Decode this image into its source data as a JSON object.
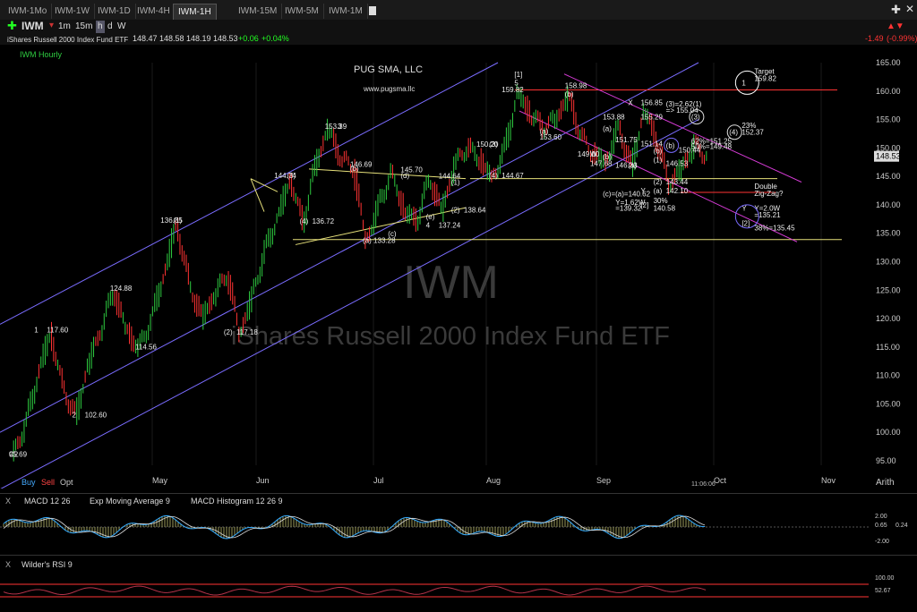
{
  "tabs": [
    "IWM-1Mo",
    "IWM-1W",
    "IWM-1D",
    "IWM-4H",
    "IWM-1H",
    "IWM-15M",
    "IWM-5M",
    "IWM-1M"
  ],
  "active_tab": "IWM-1H",
  "symbol": "IWM",
  "intervals": [
    "1m",
    "15m",
    "h",
    "d",
    "W"
  ],
  "description": "iShares Russell 2000 Index Fund ETF",
  "quote": {
    "prev": "148.47",
    "high": "148.58",
    "low": "148.19",
    "last": "148.53",
    "change": "+0.06",
    "pct": "+0.04%"
  },
  "header_right": {
    "change": "-1.49",
    "pct": "(-0.99%)"
  },
  "panel_title": "IWM Hourly",
  "watermark_symbol": "IWM",
  "watermark_desc": "iShares Russell 2000 Index Fund ETF",
  "brand": "PUG SMA, LLC",
  "brand_url": "www.pugsma.llc",
  "trade_buttons": {
    "buy": "Buy",
    "sell": "Sell",
    "opt": "Opt"
  },
  "time_marker": "11:06:06",
  "scale_mode": "Arith",
  "macd_legend": {
    "macd": "MACD 12 26",
    "ema": "Exp Moving Average 9",
    "hist": "MACD Histogram 12 26 9"
  },
  "macd_axis": [
    "2.00",
    "0.65",
    "0.24",
    "-2.00"
  ],
  "rsi_legend": "Wilder's RSI 9",
  "rsi_axis": [
    "100.00",
    "52.67"
  ],
  "colors": {
    "up": "#2ecc40",
    "down": "#ff3333",
    "channel": "#7a6cff",
    "magenta": "#d63bd6",
    "yellow": "#e6e07a",
    "resistance": "#ff3333"
  },
  "chart_data": {
    "type": "line",
    "x_ticks": [
      "May",
      "Jun",
      "Jul",
      "Aug",
      "Sep",
      "Oct",
      "Nov"
    ],
    "y_ticks": [
      "165.00",
      "160.00",
      "155.00",
      "150.00",
      "145.00",
      "140.00",
      "135.00",
      "130.00",
      "125.00",
      "120.00",
      "115.00",
      "110.00",
      "105.00",
      "100.00",
      "95.00"
    ],
    "ylim": [
      95,
      165
    ],
    "last_price": "148.53",
    "series": [
      {
        "values": [
          95.69,
          101,
          110,
          117.6,
          108,
          102.6,
          112,
          118,
          124.88,
          118,
          114.56,
          120,
          128,
          136.85,
          126,
          120,
          124,
          128,
          117.18,
          124,
          132,
          138,
          144.74,
          136.72,
          147,
          153.39,
          148,
          146.69,
          133.28,
          140,
          145.7,
          139,
          137.24,
          144.64,
          138.64,
          147,
          150.2,
          148,
          144.67,
          150,
          159.82,
          156,
          153.6,
          155,
          158.98,
          152,
          149,
          147.68,
          153.88,
          146.33,
          156.85,
          151.14,
          143.44,
          146.53,
          150.44,
          148.53
        ]
      }
    ],
    "annotations": [
      {
        "text": "C2",
        "x": 0,
        "y": 95.69
      },
      {
        "text": "95.69",
        "x": 0,
        "y": 95.69
      },
      {
        "text": "1",
        "x": 2,
        "y": 117.6
      },
      {
        "text": "117.60",
        "x": 3,
        "y": 117.6
      },
      {
        "text": "2",
        "x": 5,
        "y": 102.6
      },
      {
        "text": "102.60",
        "x": 6,
        "y": 102.6
      },
      {
        "text": "124.88",
        "x": 8,
        "y": 124.88
      },
      {
        "text": "114.56",
        "x": 10,
        "y": 114.56
      },
      {
        "text": "136.85",
        "x": 12,
        "y": 136.85
      },
      {
        "text": "(1)",
        "x": 13,
        "y": 136.85
      },
      {
        "text": "(2)",
        "x": 17,
        "y": 117.18
      },
      {
        "text": "117.18",
        "x": 18,
        "y": 117.18
      },
      {
        "text": "144.74",
        "x": 21,
        "y": 144.74
      },
      {
        "text": "(3)",
        "x": 22,
        "y": 144.74
      },
      {
        "text": "(4)",
        "x": 23,
        "y": 136.72
      },
      {
        "text": "136.72",
        "x": 24,
        "y": 136.72
      },
      {
        "text": "153.39",
        "x": 25,
        "y": 153.39
      },
      {
        "text": "3",
        "x": 26,
        "y": 153.39
      },
      {
        "text": "146.69",
        "x": 27,
        "y": 146.69
      },
      {
        "text": "(b)",
        "x": 27,
        "y": 146.0
      },
      {
        "text": "(a) 133.28",
        "x": 28,
        "y": 133.28
      },
      {
        "text": "(c)",
        "x": 30,
        "y": 134.5
      },
      {
        "text": "145.70",
        "x": 31,
        "y": 145.7
      },
      {
        "text": "(d)",
        "x": 31,
        "y": 144.7
      },
      {
        "text": "(e)",
        "x": 33,
        "y": 137.5
      },
      {
        "text": "4",
        "x": 33,
        "y": 136.0
      },
      {
        "text": "137.24",
        "x": 34,
        "y": 136.0
      },
      {
        "text": "144.64",
        "x": 34,
        "y": 144.64
      },
      {
        "text": "(1)",
        "x": 35,
        "y": 143.5
      },
      {
        "text": "(2)",
        "x": 35,
        "y": 138.64
      },
      {
        "text": "138.64",
        "x": 36,
        "y": 138.64
      },
      {
        "text": "150.20",
        "x": 37,
        "y": 150.2
      },
      {
        "text": "(3)",
        "x": 38,
        "y": 150.2
      },
      {
        "text": "(4)",
        "x": 38,
        "y": 144.67
      },
      {
        "text": "144.67",
        "x": 39,
        "y": 144.67
      },
      {
        "text": "159.82",
        "x": 39,
        "y": 159.82
      },
      {
        "text": "[1]",
        "x": 40,
        "y": 162.5
      },
      {
        "text": "5",
        "x": 40,
        "y": 161.0
      },
      {
        "text": "(a)",
        "x": 42,
        "y": 152.5
      },
      {
        "text": "153.60",
        "x": 42,
        "y": 151.5
      },
      {
        "text": "158.98",
        "x": 44,
        "y": 160.5
      },
      {
        "text": "(b)",
        "x": 44,
        "y": 159.0
      },
      {
        "text": "149.00",
        "x": 45,
        "y": 148.5
      },
      {
        "text": "W",
        "x": 46,
        "y": 148.5
      },
      {
        "text": "147.68",
        "x": 46,
        "y": 146.8
      },
      {
        "text": "(b)",
        "x": 47,
        "y": 148.0
      },
      {
        "text": "(a)",
        "x": 47,
        "y": 153.0
      },
      {
        "text": "153.88",
        "x": 47,
        "y": 155.0
      },
      {
        "text": "151.75",
        "x": 48,
        "y": 151.0
      },
      {
        "text": "146.33",
        "x": 48,
        "y": 146.5
      },
      {
        "text": "(a)",
        "x": 49,
        "y": 146.5
      },
      {
        "text": "X",
        "x": 49,
        "y": 157.5
      },
      {
        "text": "156.85",
        "x": 50,
        "y": 157.5
      },
      {
        "text": "155.29",
        "x": 50,
        "y": 155.0
      },
      {
        "text": "151.14",
        "x": 50,
        "y": 150.3
      },
      {
        "text": "(b)",
        "x": 51,
        "y": 149.0
      },
      {
        "text": "(1)",
        "x": 51,
        "y": 147.5
      },
      {
        "text": "146.53",
        "x": 52,
        "y": 146.8
      },
      {
        "text": "150.44",
        "x": 53,
        "y": 149.2
      },
      {
        "text": "(2)",
        "x": 51,
        "y": 143.6
      },
      {
        "text": "143.44",
        "x": 52,
        "y": 143.6
      },
      {
        "text": "(c)=(a)=140.62",
        "x": 47,
        "y": 141.5
      },
      {
        "text": "Y",
        "x": 50,
        "y": 142.0
      },
      {
        "text": "(a)",
        "x": 51,
        "y": 142.0
      },
      {
        "text": "142.10",
        "x": 52,
        "y": 142.0
      },
      {
        "text": "Y=1.62W",
        "x": 48,
        "y": 140.0
      },
      {
        "text": "=139.32",
        "x": 48,
        "y": 139.0
      },
      {
        "text": "[2]",
        "x": 50,
        "y": 139.5
      },
      {
        "text": "30%",
        "x": 51,
        "y": 140.3
      },
      {
        "text": "140.58",
        "x": 51,
        "y": 139.0
      },
      {
        "text": "(3)=2.62(1)",
        "x": 52,
        "y": 157.3
      },
      {
        "text": "=> 155.04",
        "x": 52,
        "y": 156.2
      },
      {
        "text": "(3)",
        "x": 54,
        "y": 155.0
      },
      {
        "text": "62%=151.25",
        "x": 54,
        "y": 150.8
      },
      {
        "text": "50%=149.48",
        "x": 54,
        "y": 149.8
      },
      {
        "text": "(b)",
        "x": 52,
        "y": 150.0
      },
      {
        "text": "(4)",
        "x": 57,
        "y": 152.3
      },
      {
        "text": "23%",
        "x": 58,
        "y": 153.5
      },
      {
        "text": "152.37",
        "x": 58,
        "y": 152.3
      },
      {
        "text": "1",
        "x": 58,
        "y": 161.0
      },
      {
        "text": "Target",
        "x": 59,
        "y": 163.0
      },
      {
        "text": "159.82",
        "x": 59,
        "y": 161.8
      },
      {
        "text": "Double",
        "x": 59,
        "y": 142.8
      },
      {
        "text": "Zig-Zag?",
        "x": 59,
        "y": 141.6
      },
      {
        "text": "Y",
        "x": 58,
        "y": 139.0
      },
      {
        "text": "[2]",
        "x": 58,
        "y": 136.3
      },
      {
        "text": "Y=2.0W",
        "x": 59,
        "y": 139.0
      },
      {
        "text": "=135.21",
        "x": 59,
        "y": 137.8
      },
      {
        "text": "38%=135.45",
        "x": 59,
        "y": 135.5
      }
    ]
  }
}
